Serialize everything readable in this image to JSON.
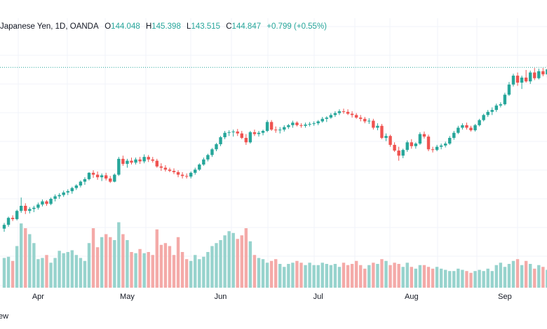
{
  "legend": {
    "symbol": "Japanese Yen, 1D, OANDA",
    "o_label": "O",
    "o_value": "144.048",
    "h_label": "H",
    "h_value": "145.398",
    "l_label": "L",
    "l_value": "143.515",
    "c_label": "C",
    "c_value": "144.847",
    "change": "+0.799 (+0.55%)"
  },
  "watermark": "ew",
  "colors": {
    "up": "#26a69a",
    "down": "#ef5350",
    "up_volume": "#97d3cd",
    "down_volume": "#f4aaa8",
    "grid": "#f0f3fa",
    "price_line": "#26a69a"
  },
  "chart_data": {
    "type": "candlestick",
    "series_label": "",
    "x_axis": {
      "ticks": [
        {
          "label": "Apr",
          "index": 8
        },
        {
          "label": "May",
          "index": 29
        },
        {
          "label": "Jun",
          "index": 51
        },
        {
          "label": "Jul",
          "index": 74
        },
        {
          "label": "Aug",
          "index": 96
        },
        {
          "label": "Sep",
          "index": 118
        }
      ]
    },
    "y_range": [
      119.0,
      148.0
    ],
    "last_price": 145.1,
    "grid": true,
    "candles": [
      [
        119.7,
        120.6,
        119.2,
        120.3,
        50
      ],
      [
        120.3,
        121.6,
        120.0,
        121.4,
        52
      ],
      [
        121.4,
        121.8,
        120.9,
        121.2,
        45
      ],
      [
        121.2,
        122.7,
        121.0,
        122.5,
        70
      ],
      [
        122.5,
        124.6,
        122.2,
        123.3,
        108
      ],
      [
        123.3,
        123.7,
        122.0,
        122.5,
        100
      ],
      [
        122.5,
        123.1,
        122.1,
        122.8,
        90
      ],
      [
        122.8,
        123.3,
        122.3,
        123.0,
        75
      ],
      [
        123.0,
        123.8,
        122.7,
        123.5,
        48
      ],
      [
        123.5,
        124.3,
        123.2,
        124.0,
        50
      ],
      [
        124.0,
        124.2,
        123.3,
        123.6,
        55
      ],
      [
        123.6,
        124.6,
        123.4,
        124.4,
        42
      ],
      [
        124.4,
        125.1,
        124.0,
        124.8,
        50
      ],
      [
        124.8,
        125.3,
        124.4,
        125.0,
        62
      ],
      [
        125.0,
        125.7,
        124.7,
        125.4,
        58
      ],
      [
        125.4,
        125.9,
        125.0,
        125.6,
        60
      ],
      [
        125.6,
        126.3,
        125.2,
        126.1,
        63
      ],
      [
        126.1,
        126.7,
        125.8,
        126.5,
        55
      ],
      [
        126.5,
        127.3,
        126.2,
        127.1,
        50
      ],
      [
        127.1,
        127.8,
        126.6,
        127.5,
        45
      ],
      [
        127.5,
        128.6,
        127.3,
        128.5,
        75
      ],
      [
        128.5,
        128.9,
        127.7,
        128.2,
        100
      ],
      [
        128.2,
        128.7,
        127.4,
        127.8,
        68
      ],
      [
        127.8,
        128.4,
        127.2,
        128.1,
        85
      ],
      [
        128.1,
        128.5,
        127.3,
        127.6,
        90
      ],
      [
        127.6,
        128.0,
        126.9,
        127.1,
        85
      ],
      [
        127.1,
        128.4,
        127.0,
        128.2,
        80
      ],
      [
        128.2,
        131.0,
        128.0,
        130.7,
        110
      ],
      [
        130.7,
        131.2,
        129.6,
        129.9,
        90
      ],
      [
        129.9,
        130.7,
        129.3,
        130.4,
        80
      ],
      [
        130.4,
        130.9,
        129.8,
        130.1,
        60
      ],
      [
        130.1,
        130.9,
        129.8,
        130.6,
        58
      ],
      [
        130.6,
        131.0,
        129.9,
        130.3,
        65
      ],
      [
        130.3,
        131.4,
        130.0,
        131.0,
        58
      ],
      [
        131.0,
        131.3,
        130.2,
        130.6,
        60
      ],
      [
        130.6,
        131.0,
        130.1,
        130.4,
        55
      ],
      [
        130.4,
        130.7,
        129.3,
        129.5,
        98
      ],
      [
        129.5,
        130.0,
        128.8,
        129.3,
        72
      ],
      [
        129.3,
        129.7,
        128.7,
        129.0,
        75
      ],
      [
        129.0,
        129.3,
        128.6,
        128.8,
        70
      ],
      [
        128.8,
        129.2,
        128.3,
        128.6,
        55
      ],
      [
        128.6,
        128.9,
        127.8,
        128.2,
        85
      ],
      [
        128.2,
        128.6,
        127.6,
        128.0,
        60
      ],
      [
        128.0,
        128.4,
        127.6,
        127.9,
        48
      ],
      [
        127.9,
        128.7,
        127.6,
        128.5,
        45
      ],
      [
        128.5,
        129.3,
        128.2,
        129.0,
        55
      ],
      [
        129.0,
        130.0,
        128.8,
        129.8,
        48
      ],
      [
        129.8,
        130.9,
        129.6,
        130.6,
        52
      ],
      [
        130.6,
        131.5,
        130.3,
        131.3,
        60
      ],
      [
        131.3,
        132.4,
        131.0,
        132.2,
        70
      ],
      [
        132.2,
        133.2,
        131.9,
        133.0,
        75
      ],
      [
        133.0,
        134.3,
        132.7,
        134.1,
        80
      ],
      [
        134.1,
        135.1,
        133.8,
        134.8,
        88
      ],
      [
        134.8,
        135.2,
        134.3,
        134.9,
        95
      ],
      [
        134.9,
        135.3,
        134.2,
        135.0,
        92
      ],
      [
        135.0,
        135.4,
        134.3,
        134.7,
        82
      ],
      [
        134.7,
        135.1,
        133.8,
        134.0,
        88
      ],
      [
        134.0,
        134.6,
        132.9,
        133.3,
        100
      ],
      [
        133.3,
        135.1,
        133.1,
        134.9,
        78
      ],
      [
        134.9,
        135.3,
        134.3,
        134.6,
        55
      ],
      [
        134.6,
        135.1,
        134.2,
        134.8,
        50
      ],
      [
        134.8,
        135.3,
        134.4,
        135.1,
        48
      ],
      [
        135.1,
        136.8,
        134.9,
        136.5,
        42
      ],
      [
        136.5,
        136.8,
        135.1,
        135.3,
        45
      ],
      [
        135.3,
        135.8,
        134.8,
        135.2,
        48
      ],
      [
        135.2,
        135.7,
        134.7,
        135.3,
        40
      ],
      [
        135.3,
        136.0,
        135.0,
        135.7,
        35
      ],
      [
        135.7,
        136.2,
        135.4,
        136.0,
        40
      ],
      [
        136.0,
        136.7,
        135.6,
        136.4,
        42
      ],
      [
        136.4,
        136.6,
        135.8,
        136.0,
        45
      ],
      [
        136.0,
        136.3,
        135.6,
        135.9,
        42
      ],
      [
        135.9,
        136.4,
        135.6,
        136.1,
        38
      ],
      [
        136.1,
        136.5,
        135.8,
        136.2,
        42
      ],
      [
        136.2,
        136.6,
        135.9,
        136.3,
        38
      ],
      [
        136.3,
        136.8,
        136.0,
        136.6,
        38
      ],
      [
        136.6,
        137.3,
        136.4,
        137.0,
        42
      ],
      [
        137.0,
        137.4,
        136.5,
        137.2,
        40
      ],
      [
        137.2,
        137.9,
        137.0,
        137.6,
        38
      ],
      [
        137.6,
        138.2,
        137.3,
        137.9,
        40
      ],
      [
        137.9,
        138.5,
        137.6,
        138.2,
        35
      ],
      [
        138.2,
        138.6,
        137.8,
        138.1,
        42
      ],
      [
        138.1,
        138.5,
        137.6,
        137.8,
        38
      ],
      [
        137.8,
        138.2,
        137.2,
        137.6,
        40
      ],
      [
        137.6,
        137.9,
        137.0,
        137.2,
        45
      ],
      [
        137.2,
        137.6,
        136.6,
        137.0,
        38
      ],
      [
        137.0,
        137.3,
        136.3,
        136.6,
        32
      ],
      [
        136.6,
        137.1,
        136.2,
        136.7,
        38
      ],
      [
        136.7,
        137.0,
        135.3,
        135.6,
        42
      ],
      [
        135.6,
        136.3,
        135.2,
        135.9,
        40
      ],
      [
        135.9,
        136.2,
        133.8,
        134.0,
        48
      ],
      [
        134.0,
        134.7,
        133.5,
        134.3,
        45
      ],
      [
        134.3,
        134.5,
        132.6,
        132.9,
        38
      ],
      [
        132.9,
        133.3,
        131.8,
        132.0,
        42
      ],
      [
        132.0,
        132.6,
        130.4,
        131.2,
        40
      ],
      [
        131.2,
        132.3,
        130.8,
        132.1,
        35
      ],
      [
        132.1,
        133.6,
        131.8,
        133.3,
        42
      ],
      [
        133.3,
        133.8,
        132.3,
        132.7,
        35
      ],
      [
        132.7,
        133.3,
        132.3,
        133.1,
        32
      ],
      [
        133.1,
        134.9,
        132.9,
        134.6,
        38
      ],
      [
        134.6,
        135.0,
        133.9,
        134.2,
        38
      ],
      [
        134.2,
        134.5,
        131.9,
        132.2,
        35
      ],
      [
        132.2,
        132.6,
        131.7,
        132.1,
        32
      ],
      [
        132.1,
        132.9,
        131.9,
        132.6,
        35
      ],
      [
        132.6,
        133.1,
        132.2,
        132.8,
        32
      ],
      [
        132.8,
        133.4,
        132.5,
        133.1,
        30
      ],
      [
        133.1,
        134.3,
        132.9,
        134.0,
        28
      ],
      [
        134.0,
        135.1,
        133.7,
        134.8,
        28
      ],
      [
        134.8,
        135.9,
        134.6,
        135.6,
        32
      ],
      [
        135.6,
        136.3,
        135.3,
        136.0,
        30
      ],
      [
        136.0,
        136.4,
        135.3,
        135.6,
        28
      ],
      [
        135.6,
        135.9,
        135.0,
        135.2,
        25
      ],
      [
        135.2,
        136.2,
        135.0,
        136.0,
        28
      ],
      [
        136.0,
        137.0,
        135.8,
        136.8,
        30
      ],
      [
        136.8,
        137.8,
        136.6,
        137.6,
        28
      ],
      [
        137.6,
        138.4,
        137.3,
        138.1,
        32
      ],
      [
        138.1,
        138.8,
        137.6,
        138.4,
        28
      ],
      [
        138.4,
        139.4,
        138.1,
        139.1,
        38
      ],
      [
        139.1,
        139.6,
        138.8,
        139.3,
        42
      ],
      [
        139.3,
        141.1,
        139.1,
        140.8,
        35
      ],
      [
        140.8,
        142.8,
        140.6,
        142.4,
        40
      ],
      [
        142.4,
        144.1,
        142.1,
        143.8,
        45
      ],
      [
        143.8,
        144.3,
        142.2,
        142.7,
        48
      ],
      [
        142.7,
        143.8,
        141.7,
        143.5,
        38
      ],
      [
        143.5,
        144.7,
        142.7,
        142.9,
        45
      ],
      [
        142.9,
        144.6,
        142.5,
        144.3,
        40
      ],
      [
        144.3,
        145.0,
        143.1,
        143.4,
        32
      ],
      [
        143.4,
        144.9,
        143.2,
        144.5,
        38
      ],
      [
        144.5,
        145.0,
        143.7,
        144.0,
        35
      ],
      [
        144.0,
        145.4,
        143.5,
        144.8,
        30
      ]
    ]
  }
}
